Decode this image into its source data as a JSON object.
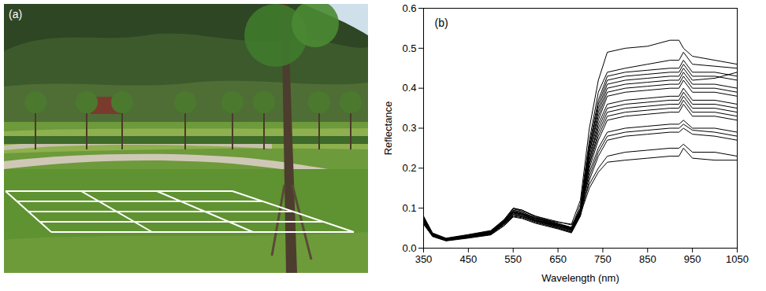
{
  "photo": {
    "label": "(a)"
  },
  "chart_data": {
    "type": "line",
    "title": "(b)",
    "x_label": "Wavelength (nm)",
    "y_label": "Reflectance",
    "color": "#000000",
    "grid": false,
    "xlim": [
      350,
      1050
    ],
    "xticks": [
      350,
      450,
      550,
      650,
      750,
      850,
      950,
      1050
    ],
    "ylim": [
      0,
      0.6
    ],
    "yticks": [
      {
        "value": 0,
        "label": "0.0"
      },
      0.1,
      0.2,
      0.3,
      0.4,
      0.5,
      0.6
    ],
    "x": [
      350,
      370,
      400,
      450,
      500,
      530,
      550,
      570,
      600,
      650,
      680,
      700,
      720,
      740,
      760,
      800,
      850,
      900,
      920,
      930,
      950,
      1000,
      1050
    ],
    "series": [
      {
        "values": [
          0.07,
          0.035,
          0.022,
          0.03,
          0.04,
          0.065,
          0.09,
          0.085,
          0.075,
          0.065,
          0.06,
          0.12,
          0.3,
          0.42,
          0.49,
          0.5,
          0.505,
          0.52,
          0.52,
          0.5,
          0.48,
          0.47,
          0.46
        ]
      },
      {
        "values": [
          0.075,
          0.036,
          0.023,
          0.032,
          0.042,
          0.07,
          0.1,
          0.095,
          0.078,
          0.06,
          0.05,
          0.11,
          0.27,
          0.39,
          0.44,
          0.45,
          0.46,
          0.47,
          0.47,
          0.49,
          0.46,
          0.455,
          0.45
        ]
      },
      {
        "values": [
          0.07,
          0.034,
          0.022,
          0.031,
          0.04,
          0.068,
          0.095,
          0.09,
          0.075,
          0.058,
          0.048,
          0.1,
          0.26,
          0.37,
          0.43,
          0.44,
          0.445,
          0.45,
          0.45,
          0.47,
          0.44,
          0.44,
          0.43
        ]
      },
      {
        "values": [
          0.065,
          0.032,
          0.02,
          0.028,
          0.036,
          0.062,
          0.085,
          0.08,
          0.068,
          0.052,
          0.042,
          0.09,
          0.25,
          0.36,
          0.42,
          0.43,
          0.435,
          0.44,
          0.44,
          0.46,
          0.43,
          0.43,
          0.42
        ]
      },
      {
        "values": [
          0.07,
          0.033,
          0.021,
          0.03,
          0.038,
          0.066,
          0.09,
          0.085,
          0.07,
          0.055,
          0.045,
          0.095,
          0.25,
          0.35,
          0.41,
          0.42,
          0.425,
          0.43,
          0.43,
          0.45,
          0.42,
          0.425,
          0.44
        ]
      },
      {
        "values": [
          0.08,
          0.038,
          0.025,
          0.034,
          0.044,
          0.072,
          0.1,
          0.095,
          0.08,
          0.062,
          0.052,
          0.1,
          0.24,
          0.34,
          0.4,
          0.41,
          0.415,
          0.42,
          0.42,
          0.44,
          0.41,
          0.41,
          0.4
        ]
      },
      {
        "values": [
          0.068,
          0.033,
          0.021,
          0.029,
          0.037,
          0.064,
          0.088,
          0.083,
          0.07,
          0.056,
          0.047,
          0.095,
          0.24,
          0.33,
          0.39,
          0.4,
          0.405,
          0.41,
          0.41,
          0.43,
          0.4,
          0.4,
          0.39
        ]
      },
      {
        "values": [
          0.072,
          0.035,
          0.022,
          0.031,
          0.04,
          0.067,
          0.092,
          0.087,
          0.073,
          0.057,
          0.048,
          0.093,
          0.23,
          0.32,
          0.38,
          0.39,
          0.395,
          0.4,
          0.4,
          0.42,
          0.39,
          0.39,
          0.38
        ]
      },
      {
        "values": [
          0.062,
          0.03,
          0.019,
          0.027,
          0.035,
          0.06,
          0.082,
          0.078,
          0.066,
          0.05,
          0.04,
          0.085,
          0.22,
          0.31,
          0.36,
          0.37,
          0.375,
          0.38,
          0.38,
          0.4,
          0.37,
          0.37,
          0.36
        ]
      },
      {
        "values": [
          0.074,
          0.036,
          0.023,
          0.032,
          0.041,
          0.069,
          0.095,
          0.09,
          0.076,
          0.06,
          0.05,
          0.095,
          0.22,
          0.3,
          0.35,
          0.36,
          0.365,
          0.37,
          0.37,
          0.39,
          0.36,
          0.36,
          0.35
        ]
      },
      {
        "values": [
          0.066,
          0.032,
          0.02,
          0.028,
          0.036,
          0.062,
          0.085,
          0.08,
          0.068,
          0.053,
          0.044,
          0.088,
          0.21,
          0.29,
          0.34,
          0.35,
          0.355,
          0.36,
          0.36,
          0.38,
          0.35,
          0.35,
          0.34
        ]
      },
      {
        "values": [
          0.07,
          0.034,
          0.021,
          0.03,
          0.039,
          0.065,
          0.09,
          0.085,
          0.071,
          0.056,
          0.046,
          0.09,
          0.21,
          0.28,
          0.33,
          0.34,
          0.345,
          0.35,
          0.35,
          0.37,
          0.34,
          0.34,
          0.33
        ]
      },
      {
        "values": [
          0.06,
          0.03,
          0.019,
          0.026,
          0.034,
          0.058,
          0.08,
          0.076,
          0.064,
          0.05,
          0.04,
          0.082,
          0.2,
          0.27,
          0.32,
          0.33,
          0.335,
          0.34,
          0.34,
          0.36,
          0.33,
          0.33,
          0.32
        ]
      },
      {
        "values": [
          0.068,
          0.033,
          0.021,
          0.029,
          0.037,
          0.063,
          0.088,
          0.083,
          0.07,
          0.057,
          0.05,
          0.09,
          0.19,
          0.25,
          0.29,
          0.3,
          0.305,
          0.31,
          0.31,
          0.32,
          0.3,
          0.3,
          0.29
        ]
      },
      {
        "values": [
          0.072,
          0.035,
          0.022,
          0.031,
          0.04,
          0.066,
          0.092,
          0.087,
          0.074,
          0.06,
          0.052,
          0.092,
          0.18,
          0.24,
          0.28,
          0.29,
          0.295,
          0.3,
          0.3,
          0.31,
          0.295,
          0.29,
          0.28
        ]
      },
      {
        "values": [
          0.06,
          0.029,
          0.018,
          0.025,
          0.033,
          0.056,
          0.078,
          0.074,
          0.062,
          0.048,
          0.038,
          0.08,
          0.17,
          0.23,
          0.27,
          0.28,
          0.285,
          0.29,
          0.29,
          0.3,
          0.285,
          0.28,
          0.27
        ]
      },
      {
        "values": [
          0.078,
          0.037,
          0.024,
          0.033,
          0.043,
          0.07,
          0.098,
          0.093,
          0.08,
          0.066,
          0.058,
          0.095,
          0.16,
          0.2,
          0.23,
          0.24,
          0.245,
          0.25,
          0.25,
          0.26,
          0.24,
          0.24,
          0.23
        ]
      },
      {
        "values": [
          0.068,
          0.033,
          0.021,
          0.029,
          0.037,
          0.062,
          0.085,
          0.08,
          0.068,
          0.055,
          0.048,
          0.085,
          0.15,
          0.19,
          0.215,
          0.22,
          0.225,
          0.23,
          0.23,
          0.25,
          0.225,
          0.22,
          0.22
        ]
      }
    ]
  }
}
